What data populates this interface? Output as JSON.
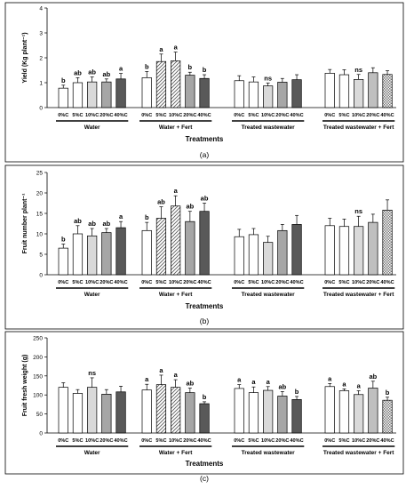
{
  "chart_data": [
    {
      "type": "bar",
      "panel_label": "(a)",
      "ylabel": "Yield (Kg plant⁻¹)",
      "xlabel": "Treatments",
      "ylim": [
        0,
        4
      ],
      "yticks": [
        0,
        1,
        2,
        3,
        4
      ],
      "grid": false,
      "groups": [
        {
          "name": "Water",
          "categories": [
            "0%C",
            "5%C",
            "10%C",
            "20%C",
            "40%C"
          ],
          "values": [
            0.78,
            1.0,
            1.03,
            1.03,
            1.15
          ],
          "errors": [
            0.12,
            0.2,
            0.2,
            0.12,
            0.22
          ],
          "letters": [
            "b",
            "ab",
            "ab",
            "ab",
            "a"
          ]
        },
        {
          "name": "Water + Fert",
          "categories": [
            "0%C",
            "5%C",
            "10%C",
            "20%C",
            "40%C"
          ],
          "values": [
            1.2,
            1.85,
            1.88,
            1.3,
            1.17
          ],
          "errors": [
            0.25,
            0.3,
            0.35,
            0.12,
            0.15
          ],
          "letters": [
            "b",
            "a",
            "a",
            "b",
            "b"
          ]
        },
        {
          "name": "Treated wastewater",
          "categories": [
            "0%C",
            "5%C",
            "10%C",
            "20%C",
            "40%C"
          ],
          "values": [
            1.08,
            1.03,
            0.87,
            1.02,
            1.12
          ],
          "errors": [
            0.2,
            0.2,
            0.12,
            0.15,
            0.2
          ],
          "letters": [
            "",
            "",
            "ns",
            "",
            ""
          ]
        },
        {
          "name": "Treated wastewater + Fert",
          "categories": [
            "0%C",
            "5%C",
            "10%C",
            "20%C",
            "40%C"
          ],
          "values": [
            1.38,
            1.32,
            1.13,
            1.4,
            1.33
          ],
          "errors": [
            0.15,
            0.2,
            0.2,
            0.2,
            0.15
          ],
          "letters": [
            "",
            "",
            "ns",
            "",
            ""
          ]
        }
      ]
    },
    {
      "type": "bar",
      "panel_label": "(b)",
      "ylabel": "Fruit number plant⁻¹",
      "xlabel": "Treatments",
      "ylim": [
        0,
        25
      ],
      "yticks": [
        0,
        5,
        10,
        15,
        20,
        25
      ],
      "grid": false,
      "groups": [
        {
          "name": "Water",
          "categories": [
            "0%C",
            "5%C",
            "10%C",
            "20%C",
            "40%C"
          ],
          "values": [
            6.5,
            10.0,
            9.5,
            10.3,
            11.5
          ],
          "errors": [
            1.0,
            2.0,
            1.8,
            1.0,
            1.5
          ],
          "letters": [
            "b",
            "ab",
            "ab",
            "ab",
            "a"
          ]
        },
        {
          "name": "Water + Fert",
          "categories": [
            "0%C",
            "5%C",
            "10%C",
            "20%C",
            "40%C"
          ],
          "values": [
            10.8,
            13.8,
            16.8,
            13.0,
            15.5
          ],
          "errors": [
            2.0,
            2.8,
            2.5,
            2.5,
            2.0
          ],
          "letters": [
            "b",
            "ab",
            "a",
            "ab",
            "ab"
          ]
        },
        {
          "name": "Treated wastewater",
          "categories": [
            "0%C",
            "5%C",
            "10%C",
            "20%C",
            "40%C"
          ],
          "values": [
            9.3,
            9.8,
            7.9,
            10.8,
            12.3
          ],
          "errors": [
            1.8,
            1.5,
            1.5,
            1.5,
            2.2
          ],
          "letters": [
            "",
            "",
            "",
            "",
            ""
          ]
        },
        {
          "name": "Treated wastewater + Fert",
          "categories": [
            "0%C",
            "5%C",
            "10%C",
            "20%C",
            "40%C"
          ],
          "values": [
            12.0,
            11.8,
            11.8,
            12.8,
            15.8
          ],
          "errors": [
            1.8,
            1.8,
            2.5,
            2.0,
            2.5
          ],
          "letters": [
            "",
            "",
            "ns",
            "",
            ""
          ]
        }
      ]
    },
    {
      "type": "bar",
      "panel_label": "(c)",
      "ylabel": "Fruit fresh weight (g)",
      "xlabel": "Treatments",
      "ylim": [
        0,
        250
      ],
      "yticks": [
        0,
        50,
        100,
        150,
        200,
        250
      ],
      "grid": false,
      "groups": [
        {
          "name": "Water",
          "categories": [
            "0%C",
            "5%C",
            "10%C",
            "20%C",
            "40%C"
          ],
          "values": [
            120,
            104,
            120,
            102,
            108
          ],
          "errors": [
            12,
            10,
            25,
            12,
            15
          ],
          "letters": [
            "",
            "",
            "ns",
            "",
            ""
          ]
        },
        {
          "name": "Water + Fert",
          "categories": [
            "0%C",
            "5%C",
            "10%C",
            "20%C",
            "40%C"
          ],
          "values": [
            113,
            127,
            120,
            106,
            77
          ],
          "errors": [
            15,
            25,
            20,
            12,
            5
          ],
          "letters": [
            "a",
            "a",
            "a",
            "ab",
            "b"
          ]
        },
        {
          "name": "Treated wastewater",
          "categories": [
            "0%C",
            "5%C",
            "10%C",
            "20%C",
            "40%C"
          ],
          "values": [
            117,
            106,
            112,
            97,
            88
          ],
          "errors": [
            10,
            15,
            10,
            12,
            8
          ],
          "letters": [
            "a",
            "a",
            "a",
            "ab",
            "b"
          ]
        },
        {
          "name": "Treated wastewater + Fert",
          "categories": [
            "0%C",
            "5%C",
            "10%C",
            "20%C",
            "40%C"
          ],
          "values": [
            122,
            111,
            101,
            118,
            86
          ],
          "errors": [
            8,
            5,
            10,
            18,
            8
          ],
          "letters": [
            "a",
            "a",
            "a",
            "ab",
            "b"
          ]
        }
      ]
    }
  ]
}
